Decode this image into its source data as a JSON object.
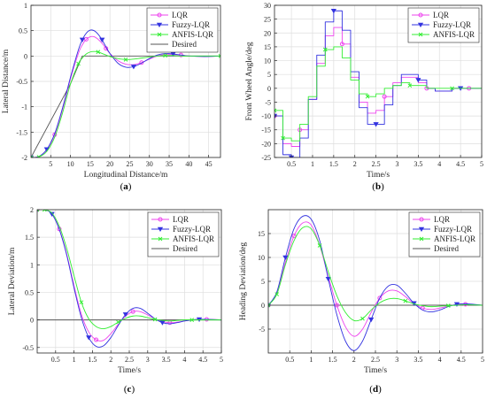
{
  "colors": {
    "LQR": "#ee44ee",
    "Fuzzy-LQR": "#3333e0",
    "ANFIS-LQR": "#33ee33",
    "Desired": "#555555",
    "grid": "#dedede",
    "axis": "#262626"
  },
  "chart_data": [
    {
      "type": "line",
      "caption": "a",
      "xlabel": "Longitudinal Distance/m",
      "ylabel": "Lateral Distance/m",
      "xlim": [
        0,
        48
      ],
      "ylim": [
        -2,
        1
      ],
      "xticks": [
        5,
        10,
        15,
        20,
        25,
        30,
        35,
        40,
        45
      ],
      "yticks": [
        -2,
        -1.5,
        -1,
        -0.5,
        0,
        0.5,
        1
      ],
      "grid": true,
      "legend": "top-right",
      "series": [
        {
          "name": "LQR",
          "marker": "circle",
          "steps": false,
          "x": [
            0,
            2,
            4,
            6,
            8,
            10,
            12,
            13,
            14,
            15,
            16,
            17,
            18,
            19,
            20,
            22,
            24,
            26,
            28,
            30,
            32,
            34,
            36,
            38,
            40,
            44,
            48
          ],
          "y": [
            -2,
            -1.98,
            -1.85,
            -1.55,
            -1.05,
            -0.45,
            0.05,
            0.22,
            0.33,
            0.38,
            0.38,
            0.33,
            0.25,
            0.15,
            0.05,
            -0.09,
            -0.16,
            -0.17,
            -0.13,
            -0.06,
            0.0,
            0.03,
            0.03,
            0.02,
            0.0,
            -0.01,
            0.0
          ]
        },
        {
          "name": "Fuzzy-LQR",
          "marker": "triangle-down",
          "steps": false,
          "x": [
            0,
            2,
            4,
            6,
            8,
            10,
            12,
            13,
            14,
            15,
            16,
            17,
            18,
            19,
            20,
            22,
            24,
            26,
            28,
            30,
            32,
            34,
            36,
            38,
            40,
            44,
            48
          ],
          "y": [
            -2,
            -1.98,
            -1.84,
            -1.53,
            -1.02,
            -0.42,
            0.12,
            0.32,
            0.45,
            0.51,
            0.5,
            0.43,
            0.32,
            0.18,
            0.05,
            -0.14,
            -0.22,
            -0.21,
            -0.14,
            -0.05,
            0.02,
            0.05,
            0.04,
            0.02,
            0.0,
            -0.01,
            0.0
          ]
        },
        {
          "name": "ANFIS-LQR",
          "marker": "x",
          "steps": false,
          "x": [
            0,
            2,
            4,
            6,
            8,
            10,
            12,
            13,
            14,
            15,
            16,
            17,
            18,
            19,
            20,
            22,
            24,
            26,
            28,
            30,
            32,
            34,
            36,
            38,
            40,
            44,
            48
          ],
          "y": [
            -2,
            -1.99,
            -1.88,
            -1.6,
            -1.12,
            -0.55,
            -0.15,
            -0.04,
            0.04,
            0.08,
            0.09,
            0.08,
            0.05,
            0.02,
            -0.01,
            -0.05,
            -0.07,
            -0.06,
            -0.04,
            -0.02,
            0.0,
            0.01,
            0.01,
            0.0,
            0.0,
            0.0,
            0.0
          ]
        },
        {
          "name": "Desired",
          "marker": "none",
          "steps": false,
          "x": [
            0,
            10,
            13,
            48
          ],
          "y": [
            -2,
            -0.55,
            0,
            0
          ]
        }
      ]
    },
    {
      "type": "line",
      "caption": "b",
      "xlabel": "Time/s",
      "ylabel": "Front Wheel Angle/deg",
      "xlim": [
        0.1,
        5
      ],
      "ylim": [
        -25,
        30
      ],
      "xticks": [
        0.5,
        1,
        1.5,
        2,
        2.5,
        3,
        3.5,
        4,
        4.5,
        5
      ],
      "yticks": [
        -25,
        -20,
        -15,
        -10,
        -5,
        0,
        5,
        10,
        15,
        20,
        25,
        30
      ],
      "grid": true,
      "legend": "top-right",
      "series": [
        {
          "name": "LQR",
          "marker": "circle",
          "steps": true,
          "x": [
            0.1,
            0.3,
            0.5,
            0.7,
            0.9,
            1.1,
            1.3,
            1.5,
            1.7,
            1.9,
            2.1,
            2.3,
            2.5,
            2.7,
            2.9,
            3.1,
            3.3,
            3.5,
            3.7,
            3.9,
            4.1,
            4.3,
            4.5,
            4.7,
            5.0
          ],
          "y": [
            -10,
            -20,
            -21,
            -15,
            -4,
            9,
            19,
            22,
            16,
            4,
            -5,
            -9,
            -8,
            -3,
            2,
            4,
            4,
            2,
            0,
            -1,
            -1,
            0,
            0,
            0,
            0
          ]
        },
        {
          "name": "Fuzzy-LQR",
          "marker": "triangle-down",
          "steps": true,
          "x": [
            0.1,
            0.3,
            0.5,
            0.7,
            0.9,
            1.1,
            1.3,
            1.5,
            1.7,
            1.9,
            2.1,
            2.3,
            2.5,
            2.7,
            2.9,
            3.1,
            3.3,
            3.5,
            3.7,
            3.9,
            4.1,
            4.3,
            4.5,
            4.7,
            5.0
          ],
          "y": [
            -10,
            -24,
            -25,
            -18,
            -4,
            12,
            24,
            28,
            21,
            6,
            -7,
            -13,
            -13,
            -6,
            1,
            5,
            5,
            3,
            0,
            -1,
            -1,
            0,
            0,
            0,
            0
          ]
        },
        {
          "name": "ANFIS-LQR",
          "marker": "x",
          "steps": true,
          "x": [
            0.1,
            0.3,
            0.5,
            0.7,
            0.9,
            1.1,
            1.3,
            1.5,
            1.7,
            1.9,
            2.1,
            2.3,
            2.5,
            2.7,
            2.9,
            3.1,
            3.3,
            3.5,
            3.7,
            3.9,
            4.1,
            4.3,
            4.5,
            4.7,
            5.0
          ],
          "y": [
            -8,
            -18,
            -19,
            -13,
            -3,
            8,
            14,
            15,
            11,
            3,
            -2,
            -3,
            -2,
            0,
            1,
            2,
            1,
            1,
            0,
            0,
            0,
            0,
            0,
            0,
            0
          ]
        }
      ]
    },
    {
      "type": "line",
      "caption": "c",
      "xlabel": "Time/s",
      "ylabel": "Lateral Deviation/m",
      "xlim": [
        0,
        5
      ],
      "ylim": [
        -0.6,
        2
      ],
      "xticks": [
        0.5,
        1,
        1.5,
        2,
        2.5,
        3,
        3.5,
        4,
        4.5,
        5
      ],
      "yticks": [
        -0.5,
        0,
        0.5,
        1,
        1.5,
        2
      ],
      "grid": true,
      "legend": "top-right",
      "series": [
        {
          "name": "LQR",
          "marker": "circle",
          "steps": false,
          "x": [
            0,
            0.2,
            0.4,
            0.6,
            0.8,
            1.0,
            1.2,
            1.4,
            1.6,
            1.8,
            2.0,
            2.2,
            2.4,
            2.6,
            2.8,
            3.0,
            3.2,
            3.4,
            3.6,
            3.8,
            4.0,
            4.2,
            4.4,
            4.6,
            5.0
          ],
          "y": [
            2,
            2,
            1.92,
            1.65,
            1.2,
            0.62,
            0.1,
            -0.22,
            -0.36,
            -0.37,
            -0.25,
            -0.08,
            0.07,
            0.15,
            0.15,
            0.09,
            0.02,
            -0.03,
            -0.05,
            -0.04,
            -0.02,
            0,
            0.01,
            0.01,
            0
          ]
        },
        {
          "name": "Fuzzy-LQR",
          "marker": "triangle-down",
          "steps": false,
          "x": [
            0,
            0.2,
            0.4,
            0.6,
            0.8,
            1.0,
            1.2,
            1.4,
            1.6,
            1.8,
            2.0,
            2.2,
            2.4,
            2.6,
            2.8,
            3.0,
            3.2,
            3.4,
            3.6,
            3.8,
            4.0,
            4.2,
            4.4,
            4.6,
            5.0
          ],
          "y": [
            2,
            2,
            1.92,
            1.64,
            1.18,
            0.58,
            0.04,
            -0.32,
            -0.48,
            -0.47,
            -0.32,
            -0.1,
            0.1,
            0.21,
            0.21,
            0.12,
            0.02,
            -0.05,
            -0.07,
            -0.05,
            -0.02,
            0,
            0.01,
            0.01,
            0
          ]
        },
        {
          "name": "ANFIS-LQR",
          "marker": "x",
          "steps": false,
          "x": [
            0,
            0.2,
            0.4,
            0.6,
            0.8,
            1.0,
            1.2,
            1.4,
            1.6,
            1.8,
            2.0,
            2.2,
            2.4,
            2.6,
            2.8,
            3.0,
            3.2,
            3.4,
            3.6,
            3.8,
            4.0,
            4.2,
            4.4,
            4.6,
            5.0
          ],
          "y": [
            2,
            2,
            1.94,
            1.7,
            1.3,
            0.8,
            0.32,
            0.02,
            -0.12,
            -0.16,
            -0.12,
            -0.04,
            0.03,
            0.07,
            0.07,
            0.04,
            0.01,
            -0.01,
            -0.02,
            -0.01,
            0,
            0,
            0,
            0,
            0
          ]
        },
        {
          "name": "Desired",
          "marker": "none",
          "steps": false,
          "x": [
            0,
            5
          ],
          "y": [
            0,
            0
          ]
        }
      ]
    },
    {
      "type": "line",
      "caption": "d",
      "xlabel": "Time/s",
      "ylabel": "Heading Deviation/deg",
      "xlim": [
        0,
        5
      ],
      "ylim": [
        -10,
        20
      ],
      "xticks": [
        0.5,
        1,
        1.5,
        2,
        2.5,
        3,
        3.5,
        4,
        4.5,
        5
      ],
      "yticks": [
        -5,
        0,
        5,
        10,
        15
      ],
      "grid": true,
      "legend": "top-right",
      "series": [
        {
          "name": "LQR",
          "marker": "circle",
          "steps": false,
          "x": [
            0,
            0.2,
            0.4,
            0.6,
            0.8,
            1.0,
            1.2,
            1.4,
            1.6,
            1.8,
            2.0,
            2.2,
            2.4,
            2.6,
            2.8,
            3.0,
            3.2,
            3.4,
            3.6,
            3.8,
            4.0,
            4.2,
            4.4,
            4.6,
            5.0
          ],
          "y": [
            0,
            2.5,
            9,
            14.5,
            17.2,
            16.8,
            12.5,
            6,
            0,
            -4.5,
            -6.5,
            -5,
            -1.5,
            1.5,
            3,
            3,
            1.8,
            0.3,
            -0.6,
            -0.9,
            -0.6,
            -0.2,
            0.1,
            0.2,
            0
          ]
        },
        {
          "name": "Fuzzy-LQR",
          "marker": "triangle-down",
          "steps": false,
          "x": [
            0,
            0.2,
            0.4,
            0.6,
            0.8,
            1.0,
            1.2,
            1.4,
            1.6,
            1.8,
            2.0,
            2.2,
            2.4,
            2.6,
            2.8,
            3.0,
            3.2,
            3.4,
            3.6,
            3.8,
            4.0,
            4.2,
            4.4,
            4.6,
            5.0
          ],
          "y": [
            0,
            2.8,
            10,
            16,
            18.6,
            18,
            13.5,
            5.5,
            -2,
            -7.5,
            -9.5,
            -7.5,
            -3,
            1.5,
            4,
            4.2,
            2.5,
            0.4,
            -1,
            -1.4,
            -1,
            -0.3,
            0.2,
            0.3,
            0
          ]
        },
        {
          "name": "ANFIS-LQR",
          "marker": "x",
          "steps": false,
          "x": [
            0,
            0.2,
            0.4,
            0.6,
            0.8,
            1.0,
            1.2,
            1.4,
            1.6,
            1.8,
            2.0,
            2.2,
            2.4,
            2.6,
            2.8,
            3.0,
            3.2,
            3.4,
            3.6,
            3.8,
            4.0,
            4.2,
            4.4,
            4.6,
            5.0
          ],
          "y": [
            0,
            2.3,
            8.5,
            13.5,
            16.2,
            16,
            12.5,
            7,
            2,
            -1.5,
            -3.2,
            -2.8,
            -1,
            0.5,
            1.3,
            1.4,
            0.9,
            0.3,
            -0.1,
            -0.3,
            -0.2,
            -0.1,
            0,
            0.1,
            0
          ]
        },
        {
          "name": "Desired",
          "marker": "none",
          "steps": false,
          "x": [
            0,
            5
          ],
          "y": [
            0,
            0
          ]
        }
      ]
    }
  ]
}
